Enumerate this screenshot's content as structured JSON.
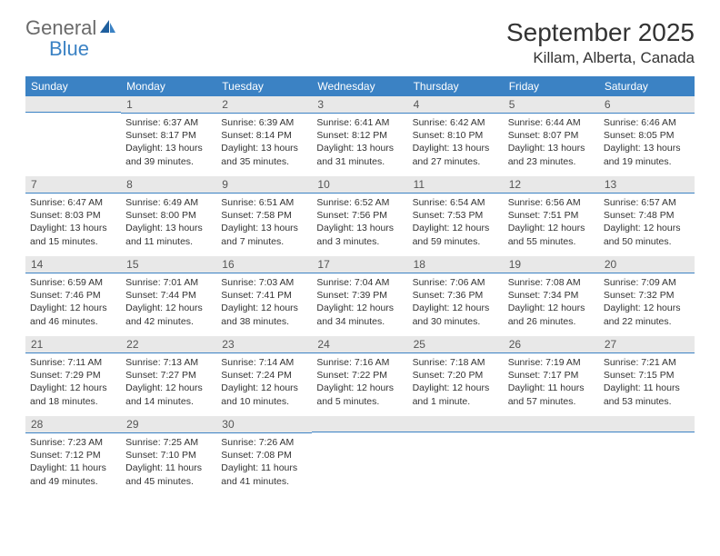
{
  "logo": {
    "text1": "General",
    "text2": "Blue"
  },
  "title": "September 2025",
  "location": "Killam, Alberta, Canada",
  "colors": {
    "header_bg": "#3b82c4",
    "header_fg": "#ffffff",
    "daynum_bg": "#e8e8e8",
    "daynum_border": "#3b82c4",
    "body_bg": "#ffffff",
    "text": "#333333",
    "logo_gray": "#6a6a6a",
    "logo_blue": "#3b82c4"
  },
  "dayNames": [
    "Sunday",
    "Monday",
    "Tuesday",
    "Wednesday",
    "Thursday",
    "Friday",
    "Saturday"
  ],
  "weeks": [
    [
      null,
      {
        "n": "1",
        "sr": "6:37 AM",
        "ss": "8:17 PM",
        "dl": "13 hours and 39 minutes."
      },
      {
        "n": "2",
        "sr": "6:39 AM",
        "ss": "8:14 PM",
        "dl": "13 hours and 35 minutes."
      },
      {
        "n": "3",
        "sr": "6:41 AM",
        "ss": "8:12 PM",
        "dl": "13 hours and 31 minutes."
      },
      {
        "n": "4",
        "sr": "6:42 AM",
        "ss": "8:10 PM",
        "dl": "13 hours and 27 minutes."
      },
      {
        "n": "5",
        "sr": "6:44 AM",
        "ss": "8:07 PM",
        "dl": "13 hours and 23 minutes."
      },
      {
        "n": "6",
        "sr": "6:46 AM",
        "ss": "8:05 PM",
        "dl": "13 hours and 19 minutes."
      }
    ],
    [
      {
        "n": "7",
        "sr": "6:47 AM",
        "ss": "8:03 PM",
        "dl": "13 hours and 15 minutes."
      },
      {
        "n": "8",
        "sr": "6:49 AM",
        "ss": "8:00 PM",
        "dl": "13 hours and 11 minutes."
      },
      {
        "n": "9",
        "sr": "6:51 AM",
        "ss": "7:58 PM",
        "dl": "13 hours and 7 minutes."
      },
      {
        "n": "10",
        "sr": "6:52 AM",
        "ss": "7:56 PM",
        "dl": "13 hours and 3 minutes."
      },
      {
        "n": "11",
        "sr": "6:54 AM",
        "ss": "7:53 PM",
        "dl": "12 hours and 59 minutes."
      },
      {
        "n": "12",
        "sr": "6:56 AM",
        "ss": "7:51 PM",
        "dl": "12 hours and 55 minutes."
      },
      {
        "n": "13",
        "sr": "6:57 AM",
        "ss": "7:48 PM",
        "dl": "12 hours and 50 minutes."
      }
    ],
    [
      {
        "n": "14",
        "sr": "6:59 AM",
        "ss": "7:46 PM",
        "dl": "12 hours and 46 minutes."
      },
      {
        "n": "15",
        "sr": "7:01 AM",
        "ss": "7:44 PM",
        "dl": "12 hours and 42 minutes."
      },
      {
        "n": "16",
        "sr": "7:03 AM",
        "ss": "7:41 PM",
        "dl": "12 hours and 38 minutes."
      },
      {
        "n": "17",
        "sr": "7:04 AM",
        "ss": "7:39 PM",
        "dl": "12 hours and 34 minutes."
      },
      {
        "n": "18",
        "sr": "7:06 AM",
        "ss": "7:36 PM",
        "dl": "12 hours and 30 minutes."
      },
      {
        "n": "19",
        "sr": "7:08 AM",
        "ss": "7:34 PM",
        "dl": "12 hours and 26 minutes."
      },
      {
        "n": "20",
        "sr": "7:09 AM",
        "ss": "7:32 PM",
        "dl": "12 hours and 22 minutes."
      }
    ],
    [
      {
        "n": "21",
        "sr": "7:11 AM",
        "ss": "7:29 PM",
        "dl": "12 hours and 18 minutes."
      },
      {
        "n": "22",
        "sr": "7:13 AM",
        "ss": "7:27 PM",
        "dl": "12 hours and 14 minutes."
      },
      {
        "n": "23",
        "sr": "7:14 AM",
        "ss": "7:24 PM",
        "dl": "12 hours and 10 minutes."
      },
      {
        "n": "24",
        "sr": "7:16 AM",
        "ss": "7:22 PM",
        "dl": "12 hours and 5 minutes."
      },
      {
        "n": "25",
        "sr": "7:18 AM",
        "ss": "7:20 PM",
        "dl": "12 hours and 1 minute."
      },
      {
        "n": "26",
        "sr": "7:19 AM",
        "ss": "7:17 PM",
        "dl": "11 hours and 57 minutes."
      },
      {
        "n": "27",
        "sr": "7:21 AM",
        "ss": "7:15 PM",
        "dl": "11 hours and 53 minutes."
      }
    ],
    [
      {
        "n": "28",
        "sr": "7:23 AM",
        "ss": "7:12 PM",
        "dl": "11 hours and 49 minutes."
      },
      {
        "n": "29",
        "sr": "7:25 AM",
        "ss": "7:10 PM",
        "dl": "11 hours and 45 minutes."
      },
      {
        "n": "30",
        "sr": "7:26 AM",
        "ss": "7:08 PM",
        "dl": "11 hours and 41 minutes."
      },
      null,
      null,
      null,
      null
    ]
  ],
  "labels": {
    "sunrise": "Sunrise:",
    "sunset": "Sunset:",
    "daylight": "Daylight:"
  }
}
